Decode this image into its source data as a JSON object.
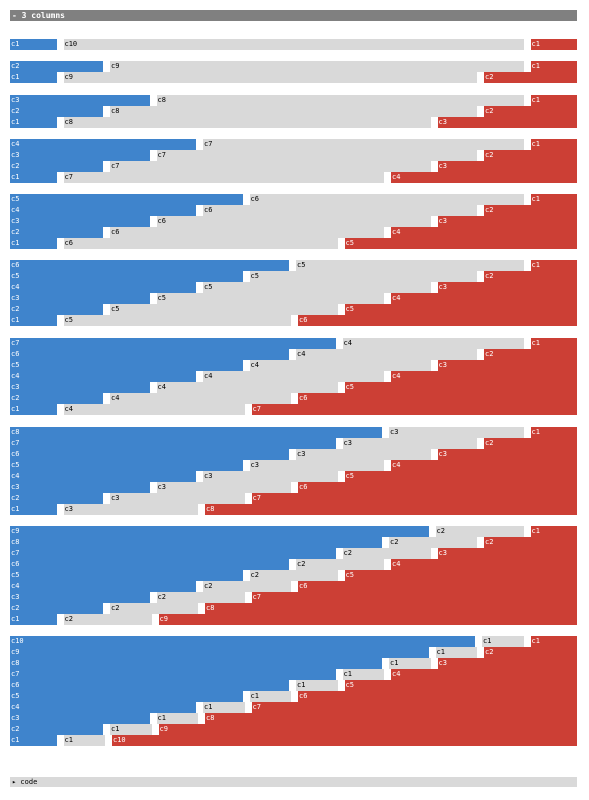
{
  "title": "- 3 columns",
  "code_label": "▸ code",
  "colors": {
    "first": "#3f84cc",
    "second": "#d9d9d9",
    "third": "#cc3f35"
  },
  "groups": [
    {
      "rows": [
        {
          "blue": "c1",
          "gray": "c10",
          "red": "c1"
        }
      ]
    },
    {
      "rows": [
        {
          "blue": "c2",
          "gray": "c9",
          "red": "c1"
        },
        {
          "blue": "c1",
          "gray": "c9",
          "red": "c2"
        }
      ]
    },
    {
      "rows": [
        {
          "blue": "c3",
          "gray": "c8",
          "red": "c1"
        },
        {
          "blue": "c2",
          "gray": "c8",
          "red": "c2"
        },
        {
          "blue": "c1",
          "gray": "c8",
          "red": "c3"
        }
      ]
    },
    {
      "rows": [
        {
          "blue": "c4",
          "gray": "c7",
          "red": "c1"
        },
        {
          "blue": "c3",
          "gray": "c7",
          "red": "c2"
        },
        {
          "blue": "c2",
          "gray": "c7",
          "red": "c3"
        },
        {
          "blue": "c1",
          "gray": "c7",
          "red": "c4"
        }
      ]
    },
    {
      "rows": [
        {
          "blue": "c5",
          "gray": "c6",
          "red": "c1"
        },
        {
          "blue": "c4",
          "gray": "c6",
          "red": "c2"
        },
        {
          "blue": "c3",
          "gray": "c6",
          "red": "c3"
        },
        {
          "blue": "c2",
          "gray": "c6",
          "red": "c4"
        },
        {
          "blue": "c1",
          "gray": "c6",
          "red": "c5"
        }
      ]
    },
    {
      "rows": [
        {
          "blue": "c6",
          "gray": "c5",
          "red": "c1"
        },
        {
          "blue": "c5",
          "gray": "c5",
          "red": "c2"
        },
        {
          "blue": "c4",
          "gray": "c5",
          "red": "c3"
        },
        {
          "blue": "c3",
          "gray": "c5",
          "red": "c4"
        },
        {
          "blue": "c2",
          "gray": "c5",
          "red": "c5"
        },
        {
          "blue": "c1",
          "gray": "c5",
          "red": "c6"
        }
      ]
    },
    {
      "rows": [
        {
          "blue": "c7",
          "gray": "c4",
          "red": "c1"
        },
        {
          "blue": "c6",
          "gray": "c4",
          "red": "c2"
        },
        {
          "blue": "c5",
          "gray": "c4",
          "red": "c3"
        },
        {
          "blue": "c4",
          "gray": "c4",
          "red": "c4"
        },
        {
          "blue": "c3",
          "gray": "c4",
          "red": "c5"
        },
        {
          "blue": "c2",
          "gray": "c4",
          "red": "c6"
        },
        {
          "blue": "c1",
          "gray": "c4",
          "red": "c7"
        }
      ]
    },
    {
      "rows": [
        {
          "blue": "c8",
          "gray": "c3",
          "red": "c1"
        },
        {
          "blue": "c7",
          "gray": "c3",
          "red": "c2"
        },
        {
          "blue": "c6",
          "gray": "c3",
          "red": "c3"
        },
        {
          "blue": "c5",
          "gray": "c3",
          "red": "c4"
        },
        {
          "blue": "c4",
          "gray": "c3",
          "red": "c5"
        },
        {
          "blue": "c3",
          "gray": "c3",
          "red": "c6"
        },
        {
          "blue": "c2",
          "gray": "c3",
          "red": "c7"
        },
        {
          "blue": "c1",
          "gray": "c3",
          "red": "c8"
        }
      ]
    },
    {
      "rows": [
        {
          "blue": "c9",
          "gray": "c2",
          "red": "c1"
        },
        {
          "blue": "c8",
          "gray": "c2",
          "red": "c2"
        },
        {
          "blue": "c7",
          "gray": "c2",
          "red": "c3"
        },
        {
          "blue": "c6",
          "gray": "c2",
          "red": "c4"
        },
        {
          "blue": "c5",
          "gray": "c2",
          "red": "c5"
        },
        {
          "blue": "c4",
          "gray": "c2",
          "red": "c6"
        },
        {
          "blue": "c3",
          "gray": "c2",
          "red": "c7"
        },
        {
          "blue": "c2",
          "gray": "c2",
          "red": "c8"
        },
        {
          "blue": "c1",
          "gray": "c2",
          "red": "c9"
        }
      ]
    },
    {
      "rows": [
        {
          "blue": "c10",
          "gray": "c1",
          "red": "c1"
        },
        {
          "blue": "c9",
          "gray": "c1",
          "red": "c2"
        },
        {
          "blue": "c8",
          "gray": "c1",
          "red": "c3"
        },
        {
          "blue": "c7",
          "gray": "c1",
          "red": "c4"
        },
        {
          "blue": "c6",
          "gray": "c1",
          "red": "c5"
        },
        {
          "blue": "c5",
          "gray": "c1",
          "red": "c6"
        },
        {
          "blue": "c4",
          "gray": "c1",
          "red": "c7"
        },
        {
          "blue": "c3",
          "gray": "c1",
          "red": "c8"
        },
        {
          "blue": "c2",
          "gray": "c1",
          "red": "c9"
        },
        {
          "blue": "c1",
          "gray": "c1",
          "red": "c10"
        }
      ]
    }
  ]
}
